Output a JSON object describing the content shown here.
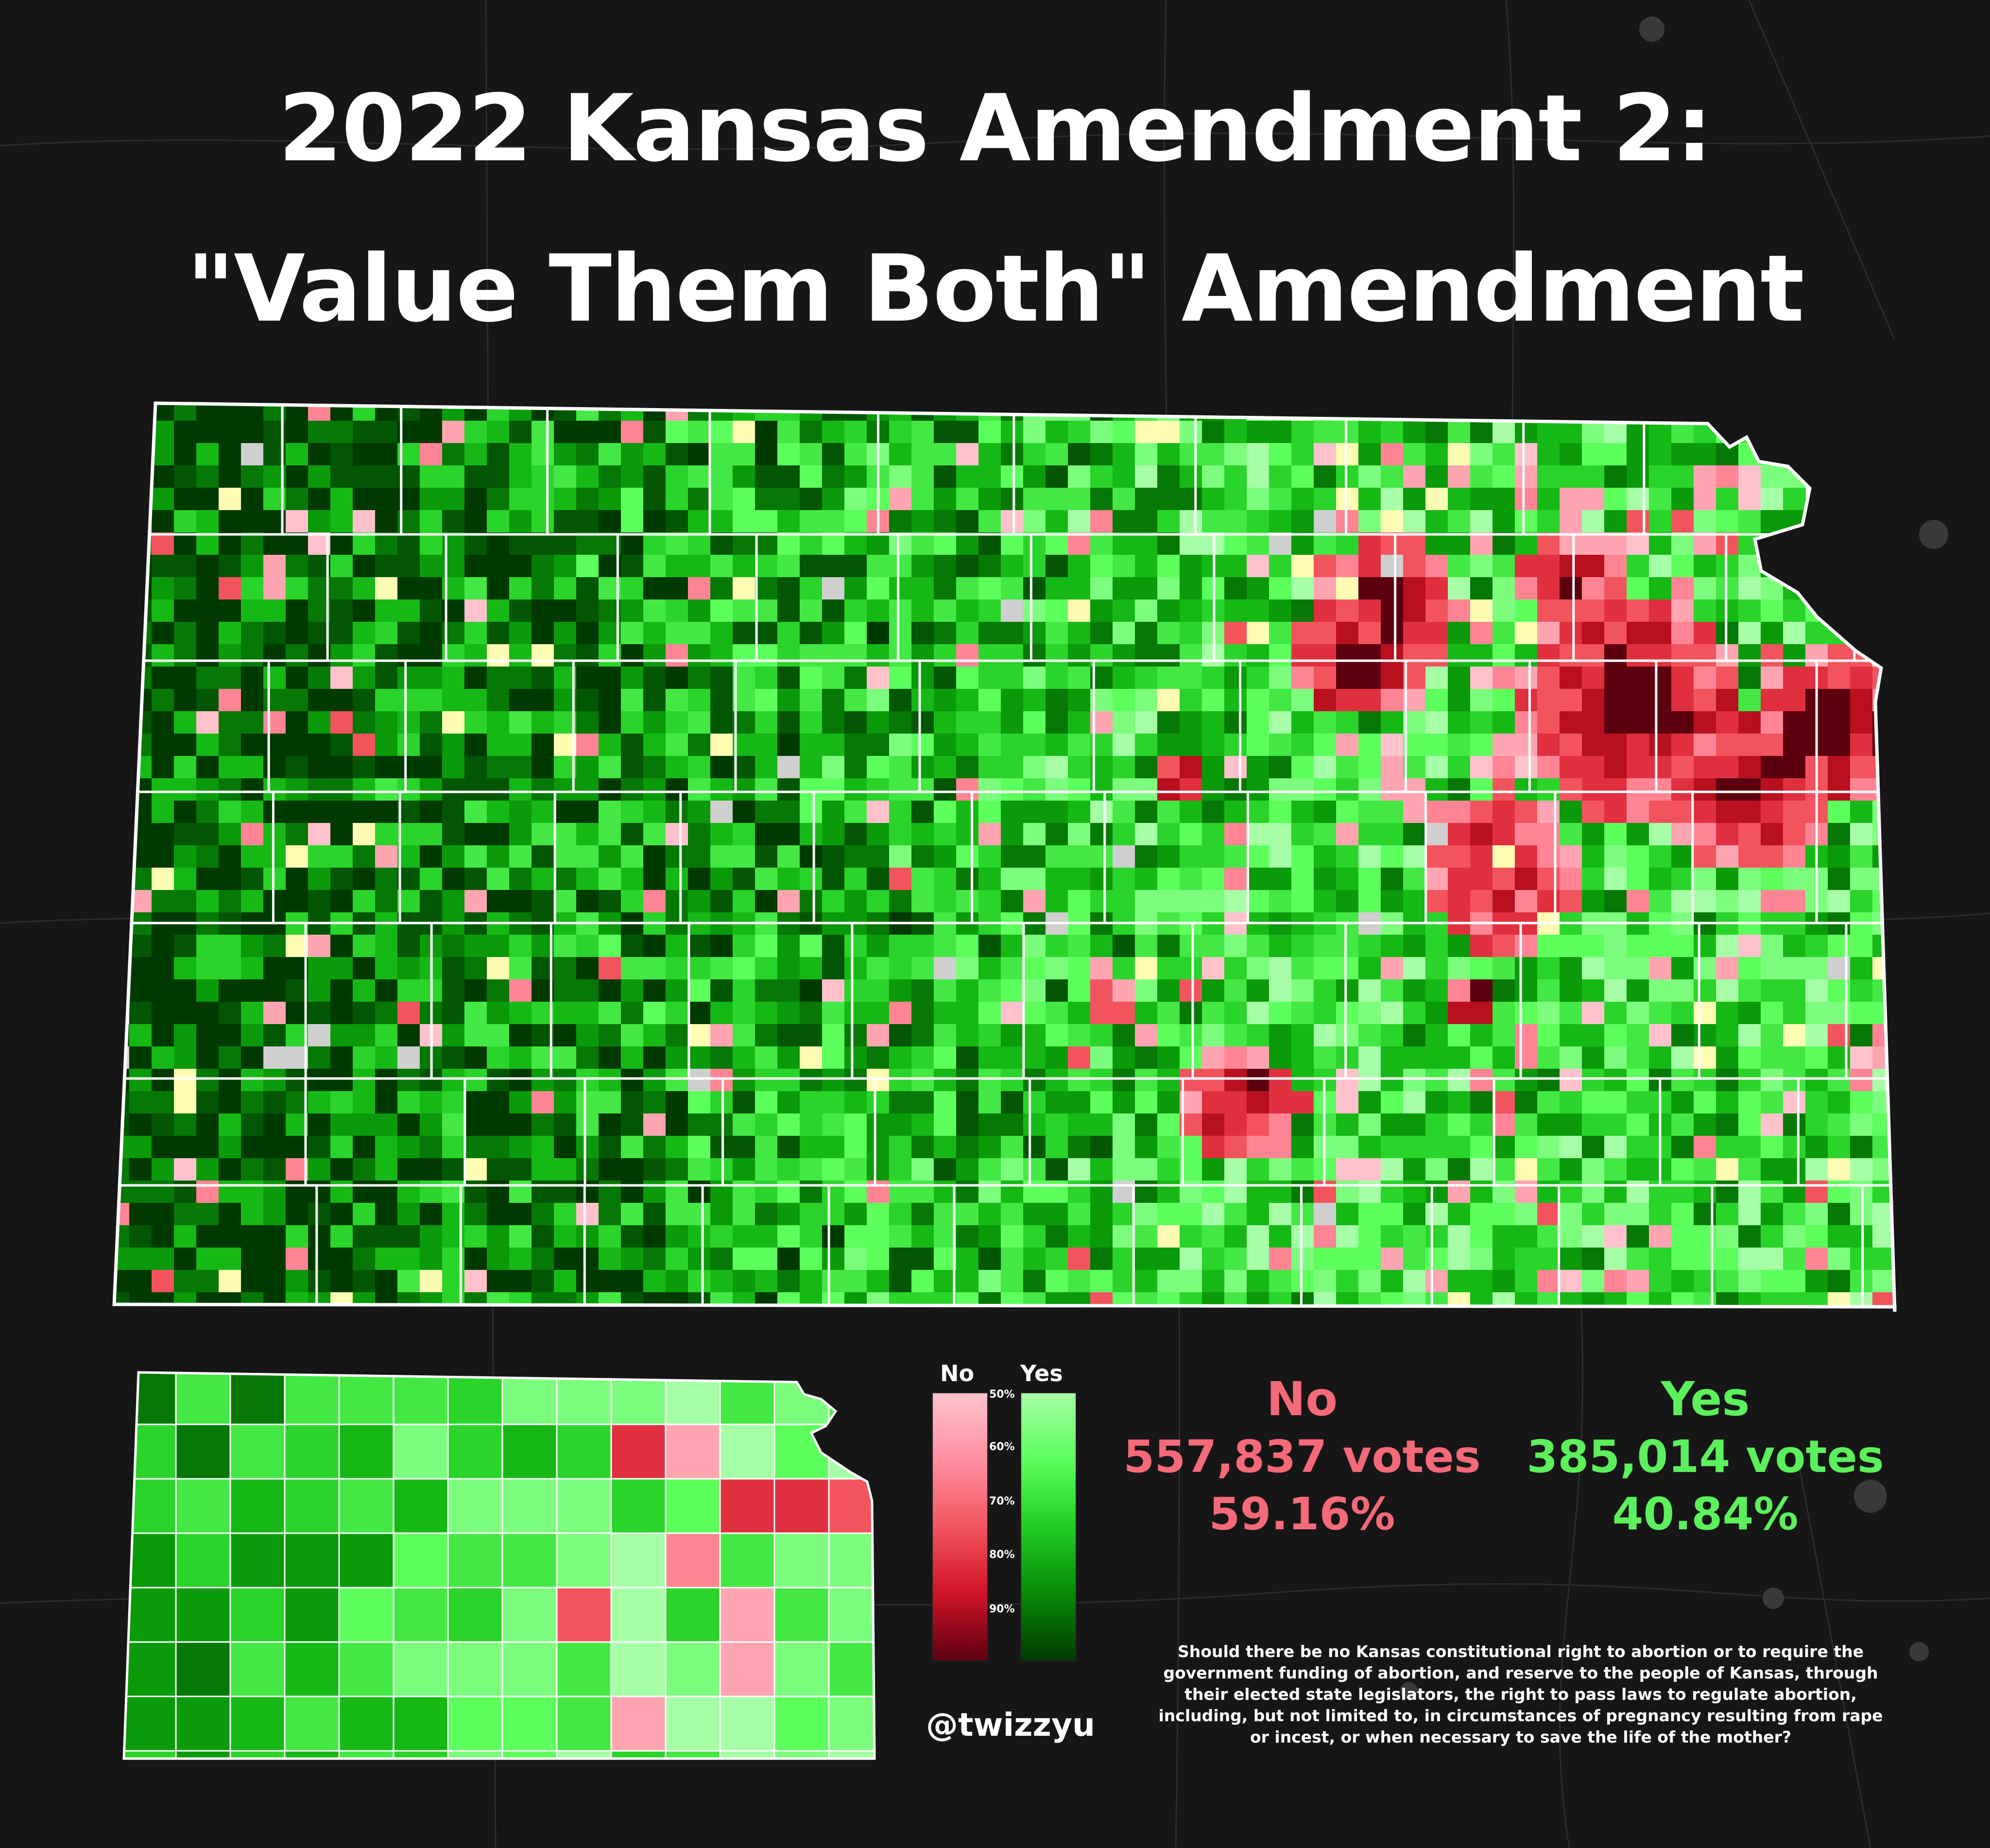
{
  "title": {
    "line1": "2022 Kansas Amendment 2:",
    "line2": "\"Value Them Both\" Amendment"
  },
  "legend": {
    "no_label": "No",
    "yes_label": "Yes",
    "ticks": [
      "50%",
      "60%",
      "70%",
      "80%",
      "90%"
    ],
    "no_colors": [
      "#ffc2cc",
      "#ff8fa0",
      "#f2545e",
      "#d01428",
      "#5c0010"
    ],
    "yes_colors": [
      "#a6ffa6",
      "#5cff5c",
      "#22cc22",
      "#078a07",
      "#013a01"
    ]
  },
  "results": {
    "no": {
      "label": "No",
      "votes": "557,837 votes",
      "percent": "59.16%",
      "color": "#f46a78"
    },
    "yes": {
      "label": "Yes",
      "votes": "385,014 votes",
      "percent": "40.84%",
      "color": "#5cf05c"
    }
  },
  "question": "Should there be no Kansas constitutional right to abortion or to require the government funding of abortion, and reserve to the people of Kansas, through their elected state legislators, the right to pass laws to regulate abortion, including, but not limited to, in circumstances of pregnancy resulting from rape or incest, or when necessary to save the life of the mother?",
  "credit": "@twizzyu",
  "map": {
    "state": "Kansas",
    "palette": {
      "yes_shades": [
        "#a6ffa6",
        "#7dfd7d",
        "#5cff5c",
        "#44e844",
        "#2ad42a",
        "#16b816",
        "#0a9a0a",
        "#067806",
        "#035603",
        "#013a01"
      ],
      "no_shades": [
        "#ffc2cc",
        "#ffa5b2",
        "#ff8595",
        "#f2545e",
        "#e03040",
        "#b8101f",
        "#5c0010"
      ],
      "tie": "#fffcb4",
      "no_data": "#cfcfcf",
      "border": "#ffffff"
    }
  }
}
